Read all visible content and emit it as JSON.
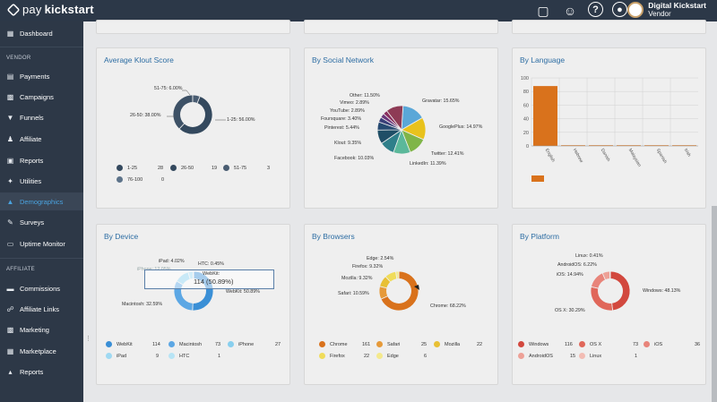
{
  "brand": {
    "name_light": "pay",
    "name_bold": "kickstart"
  },
  "header": {
    "icons": [
      "store-icon",
      "user-icon",
      "help-icon",
      "support-icon"
    ],
    "user_name": "Digital Kickstart",
    "user_role": "Vendor"
  },
  "sidebar": {
    "dashboard": "Dashboard",
    "vendor_section": "VENDOR",
    "vendor_items": [
      "Payments",
      "Campaigns",
      "Funnels",
      "Affiliate",
      "Reports",
      "Utilities",
      "Demographics",
      "Surveys",
      "Uptime Monitor"
    ],
    "affiliate_section": "AFFILIATE",
    "affiliate_items": [
      "Commissions",
      "Affiliate Links",
      "Marketing",
      "Marketplace",
      "Reports"
    ],
    "active": "Demographics"
  },
  "klout": {
    "title": "Average Klout Score",
    "labels": {
      "a": "51-75: 6.00%",
      "b": "26-50: 38.00%",
      "c": "1-25: 56.00%"
    },
    "legend": [
      {
        "name": "1-25",
        "count": "28"
      },
      {
        "name": "26-50",
        "count": "19"
      },
      {
        "name": "51-75",
        "count": "3"
      },
      {
        "name": "76-100",
        "count": "0"
      }
    ],
    "color": "#34495e"
  },
  "social": {
    "title": "By Social Network",
    "labels": {
      "other": "Other: 11.50%",
      "vimeo": "Vimeo: 2.89%",
      "youtube": "YouTube: 2.89%",
      "foursquare": "Foursquare: 3.40%",
      "pinterest": "Pinterest: 5.44%",
      "klout": "Klout: 9.35%",
      "facebook": "Facebook: 10.03%",
      "gravatar": "Gravatar: 15.65%",
      "googleplus": "GooglePlus: 14.97%",
      "twitter": "Twitter: 12.41%",
      "linkedin": "LinkedIn: 11.39%"
    }
  },
  "language": {
    "title": "By Language",
    "y_ticks": [
      "100",
      "80",
      "60",
      "40",
      "20",
      "0"
    ],
    "categories": [
      "English",
      "Hebrew",
      "Danish",
      "Malaysian",
      "Spanish",
      "Irish"
    ]
  },
  "device": {
    "title": "By Device",
    "labels": {
      "ipad": "iPad: 4.02%",
      "htc": "HTC: 0.45%",
      "iphone": "iPhone: 12.05%",
      "webkit": "WebKit: 50.89%",
      "mac": "Macintosh: 32.59%"
    },
    "tooltip_title": "WebKit:",
    "tooltip_value": "114 (50.89%)",
    "legend": [
      {
        "name": "WebKit",
        "count": "114"
      },
      {
        "name": "Macintosh",
        "count": "73"
      },
      {
        "name": "iPhone",
        "count": "27"
      },
      {
        "name": "iPad",
        "count": "9"
      },
      {
        "name": "HTC",
        "count": "1"
      }
    ]
  },
  "browsers": {
    "title": "By Browsers",
    "labels": {
      "edge": "Edge: 2.54%",
      "firefox": "Firefox: 9.32%",
      "mozilla": "Mozilla: 9.32%",
      "safari": "Safari: 10.59%",
      "chrome": "Chrome: 68.22%"
    },
    "legend": [
      {
        "name": "Chrome",
        "count": "161"
      },
      {
        "name": "Safari",
        "count": "25"
      },
      {
        "name": "Mozilla",
        "count": "22"
      },
      {
        "name": "Firefox",
        "count": "22"
      },
      {
        "name": "Edge",
        "count": "6"
      }
    ]
  },
  "platform": {
    "title": "By Platform",
    "labels": {
      "linux": "Linux: 0.41%",
      "android": "AndroidOS: 6.22%",
      "ios": "iOS: 14.94%",
      "windows": "Windows: 48.13%",
      "osx": "OS X: 30.29%"
    },
    "legend": [
      {
        "name": "Windows",
        "count": "116"
      },
      {
        "name": "OS X",
        "count": "73"
      },
      {
        "name": "iOS",
        "count": "36"
      },
      {
        "name": "AndroidOS",
        "count": "15"
      },
      {
        "name": "Linux",
        "count": "1"
      }
    ]
  },
  "chart_data": [
    {
      "type": "pie",
      "title": "Average Klout Score",
      "categories": [
        "1-25",
        "26-50",
        "51-75"
      ],
      "values": [
        56.0,
        38.0,
        6.0
      ]
    },
    {
      "type": "pie",
      "title": "By Social Network",
      "categories": [
        "Gravatar",
        "GooglePlus",
        "Twitter",
        "LinkedIn",
        "Facebook",
        "Klout",
        "Pinterest",
        "Foursquare",
        "YouTube",
        "Vimeo",
        "Other"
      ],
      "values": [
        15.65,
        14.97,
        12.41,
        11.39,
        10.03,
        9.35,
        5.44,
        3.4,
        2.89,
        2.89,
        11.5
      ]
    },
    {
      "type": "bar",
      "title": "By Language",
      "categories": [
        "English",
        "Hebrew",
        "Danish",
        "Malaysian",
        "Spanish",
        "Irish"
      ],
      "values": [
        88,
        1,
        1,
        1,
        1,
        1
      ],
      "ylim": [
        0,
        100
      ],
      "color": "#d9721c"
    },
    {
      "type": "pie",
      "title": "By Device",
      "categories": [
        "WebKit",
        "Macintosh",
        "iPhone",
        "iPad",
        "HTC"
      ],
      "values": [
        50.89,
        32.59,
        12.05,
        4.02,
        0.45
      ]
    },
    {
      "type": "pie",
      "title": "By Browsers",
      "categories": [
        "Chrome",
        "Safari",
        "Mozilla",
        "Firefox",
        "Edge"
      ],
      "values": [
        68.22,
        10.59,
        9.32,
        9.32,
        2.54
      ]
    },
    {
      "type": "pie",
      "title": "By Platform",
      "categories": [
        "Windows",
        "OS X",
        "iOS",
        "AndroidOS",
        "Linux"
      ],
      "values": [
        48.13,
        30.29,
        14.94,
        6.22,
        0.41
      ]
    }
  ]
}
